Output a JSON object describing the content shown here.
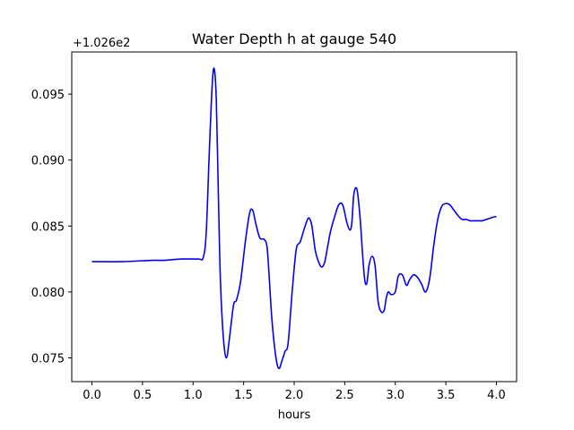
{
  "chart_data": {
    "type": "line",
    "title": "Water Depth h at gauge 540",
    "xlabel": "hours",
    "ylabel": "",
    "y_offset_label": "+1.026e2",
    "xlim": [
      -0.2,
      4.2
    ],
    "ylim": [
      0.0732,
      0.0982
    ],
    "x_ticks": [
      0.0,
      0.5,
      1.0,
      1.5,
      2.0,
      2.5,
      3.0,
      3.5,
      4.0
    ],
    "x_tick_labels": [
      "0.0",
      "0.5",
      "1.0",
      "1.5",
      "2.0",
      "2.5",
      "3.0",
      "3.5",
      "4.0"
    ],
    "y_ticks": [
      0.075,
      0.08,
      0.085,
      0.09,
      0.095
    ],
    "y_tick_labels": [
      "0.075",
      "0.080",
      "0.085",
      "0.090",
      "0.095"
    ],
    "grid": false,
    "line_color": "#0000ff",
    "series": [
      {
        "name": "",
        "x": [
          0.0,
          0.3,
          0.6,
          0.7,
          0.9,
          1.05,
          1.1,
          1.13,
          1.16,
          1.19,
          1.21,
          1.23,
          1.25,
          1.27,
          1.3,
          1.33,
          1.36,
          1.4,
          1.43,
          1.47,
          1.52,
          1.56,
          1.59,
          1.62,
          1.66,
          1.7,
          1.73,
          1.75,
          1.78,
          1.82,
          1.85,
          1.88,
          1.91,
          1.94,
          1.98,
          2.02,
          2.06,
          2.1,
          2.14,
          2.17,
          2.19,
          2.21,
          2.24,
          2.27,
          2.3,
          2.33,
          2.36,
          2.4,
          2.44,
          2.48,
          2.52,
          2.55,
          2.57,
          2.59,
          2.62,
          2.65,
          2.68,
          2.7,
          2.72,
          2.74,
          2.77,
          2.8,
          2.83,
          2.86,
          2.89,
          2.91,
          2.93,
          2.96,
          3.0,
          3.03,
          3.07,
          3.11,
          3.14,
          3.18,
          3.22,
          3.26,
          3.3,
          3.34,
          3.38,
          3.42,
          3.46,
          3.5,
          3.54,
          3.58,
          3.62,
          3.66,
          3.7,
          3.74,
          3.78,
          3.82,
          3.86,
          3.9,
          3.94,
          3.98,
          4.0
        ],
        "y": [
          0.0823,
          0.0823,
          0.0824,
          0.0824,
          0.0825,
          0.0825,
          0.0826,
          0.0845,
          0.0905,
          0.0958,
          0.0969,
          0.0945,
          0.0875,
          0.081,
          0.0765,
          0.075,
          0.0765,
          0.079,
          0.0794,
          0.0808,
          0.084,
          0.086,
          0.0862,
          0.0852,
          0.0841,
          0.084,
          0.0835,
          0.0815,
          0.0779,
          0.075,
          0.0742,
          0.0748,
          0.0755,
          0.0761,
          0.08,
          0.0832,
          0.0838,
          0.0848,
          0.0856,
          0.0852,
          0.0842,
          0.0831,
          0.0823,
          0.0819,
          0.0822,
          0.0834,
          0.0846,
          0.0857,
          0.0866,
          0.0866,
          0.0853,
          0.0847,
          0.0852,
          0.0874,
          0.0878,
          0.0858,
          0.0825,
          0.0808,
          0.0807,
          0.082,
          0.0827,
          0.082,
          0.0793,
          0.0785,
          0.0786,
          0.0795,
          0.08,
          0.0798,
          0.08,
          0.0812,
          0.0813,
          0.0805,
          0.0809,
          0.0813,
          0.0811,
          0.0806,
          0.08,
          0.081,
          0.0835,
          0.0855,
          0.0865,
          0.0867,
          0.0866,
          0.0862,
          0.0858,
          0.0855,
          0.0855,
          0.0854,
          0.0854,
          0.0854,
          0.0854,
          0.0855,
          0.0856,
          0.0857,
          0.0857
        ]
      }
    ]
  }
}
